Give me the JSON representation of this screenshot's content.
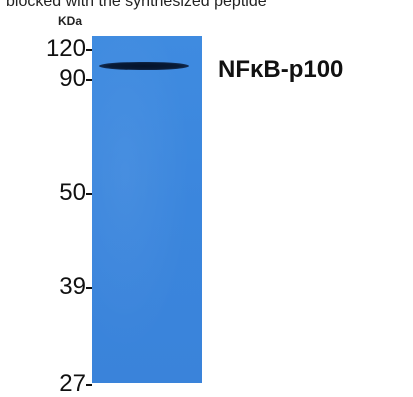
{
  "caption": "blocked with the synthesized peptide",
  "unit_label": "KDa",
  "markers": [
    "120",
    "90",
    "50",
    "39",
    "27"
  ],
  "band_label": "NFκB-p100",
  "colors": {
    "membrane": "#3a84db",
    "band": "#081a35",
    "text": "#111111"
  }
}
